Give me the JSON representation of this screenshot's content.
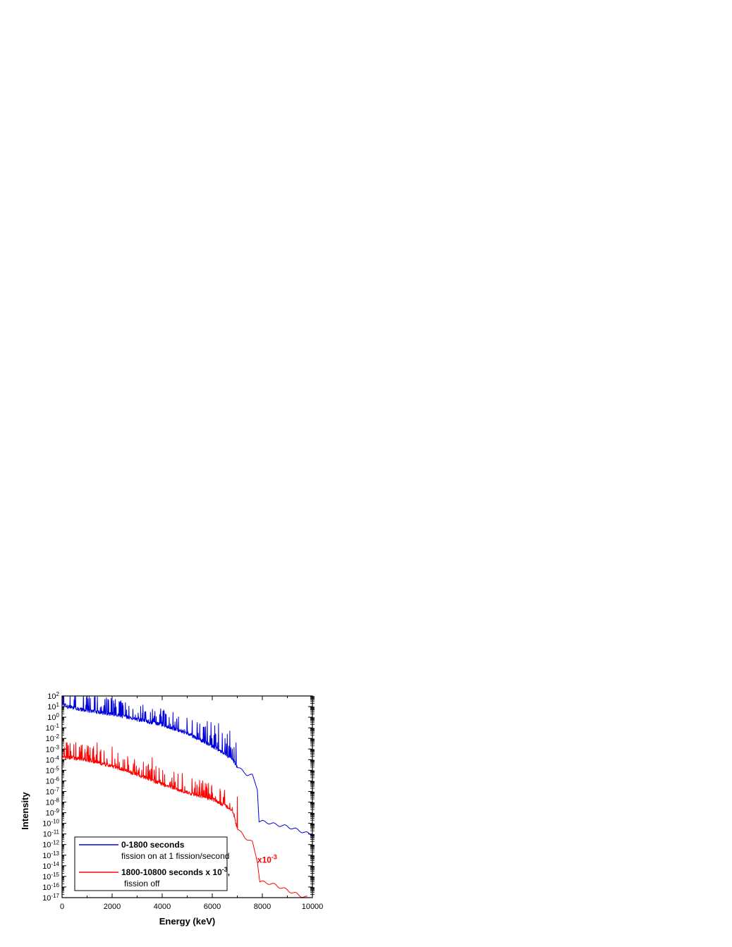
{
  "chart_data": {
    "type": "line",
    "xlabel": "Energy (keV)",
    "ylabel": "Intensity",
    "xlim": [
      0,
      10000
    ],
    "ylim_exp": [
      -17,
      2
    ],
    "yscale": "log",
    "x_ticks": [
      "0",
      "2000",
      "4000",
      "6000",
      "8000",
      "10000"
    ],
    "y_tick_base": "10",
    "y_tick_exponents": [
      "2",
      "1",
      "0",
      "-1",
      "-2",
      "-3",
      "-4",
      "-5",
      "-6",
      "-7",
      "-8",
      "-9",
      "-10",
      "-11",
      "-12",
      "-13",
      "-14",
      "-15",
      "-16",
      "-17"
    ],
    "annotation": {
      "text": "x10",
      "sup": "-3",
      "color": "#ff0000"
    },
    "legend": {
      "placement": "bottom-left",
      "entries": [
        {
          "line1": "0-1800 seconds",
          "line2": "fission on at 1 fission/second",
          "color": "#0000dd"
        },
        {
          "line1": "1800-10800 seconds x 10",
          "line1_sup": "-3",
          "line1_suffix": ",",
          "line2": "fission off",
          "color": "#ff0000"
        }
      ]
    },
    "series": [
      {
        "color": "#0000dd",
        "baseline": [
          [
            0,
            1.3
          ],
          [
            200,
            1.0
          ],
          [
            1000,
            0.6
          ],
          [
            2000,
            0.3
          ],
          [
            3000,
            -0.2
          ],
          [
            4000,
            -0.7
          ],
          [
            5000,
            -1.5
          ],
          [
            6000,
            -2.7
          ],
          [
            6800,
            -3.9
          ],
          [
            7000,
            -4.7
          ],
          [
            7400,
            -5.4
          ],
          [
            7600,
            -5.5
          ],
          [
            7800,
            -6.7
          ],
          [
            7870,
            -9.8
          ],
          [
            8200,
            -9.9
          ],
          [
            8500,
            -10.1
          ],
          [
            9000,
            -10.3
          ],
          [
            9500,
            -10.7
          ],
          [
            10000,
            -11.1
          ]
        ],
        "peaks_until": 7000,
        "peak_amp": 1.5,
        "tall_peaks": [
          [
            5000,
            -0.6
          ],
          [
            5200,
            -0.3
          ],
          [
            5400,
            -0.5
          ],
          [
            5800,
            -0.4
          ],
          [
            5950,
            -0.5
          ],
          [
            6100,
            -0.8
          ],
          [
            6250,
            -0.6
          ],
          [
            6400,
            -1.5
          ],
          [
            6600,
            -1.6
          ],
          [
            6700,
            -1.3
          ],
          [
            6950,
            -2.4
          ]
        ]
      },
      {
        "color": "#ff0000",
        "baseline": [
          [
            0,
            -3.7
          ],
          [
            200,
            -3.8
          ],
          [
            1000,
            -4.0
          ],
          [
            2000,
            -4.6
          ],
          [
            3000,
            -5.4
          ],
          [
            4000,
            -6.3
          ],
          [
            5000,
            -7.1
          ],
          [
            6000,
            -7.7
          ],
          [
            6800,
            -8.7
          ],
          [
            7000,
            -10.5
          ],
          [
            7300,
            -11.3
          ],
          [
            7600,
            -11.8
          ],
          [
            7800,
            -13.5
          ],
          [
            7900,
            -15.5
          ],
          [
            8200,
            -15.6
          ],
          [
            8500,
            -15.8
          ],
          [
            9000,
            -16.3
          ],
          [
            9500,
            -16.8
          ],
          [
            9800,
            -17.0
          ]
        ],
        "peaks_until": 7000,
        "peak_amp": 1.5,
        "tall_peaks": [
          [
            200,
            -2.4
          ],
          [
            800,
            -2.6
          ],
          [
            1400,
            -2.4
          ],
          [
            2000,
            -2.8
          ],
          [
            3600,
            -3.8
          ],
          [
            4800,
            -5.3
          ],
          [
            5200,
            -6.5
          ],
          [
            5500,
            -6.8
          ],
          [
            5800,
            -6.7
          ],
          [
            6000,
            -7.1
          ],
          [
            6400,
            -8.8
          ],
          [
            6700,
            -8.1
          ],
          [
            6800,
            -8.5
          ],
          [
            7000,
            -7.5
          ]
        ]
      }
    ]
  }
}
